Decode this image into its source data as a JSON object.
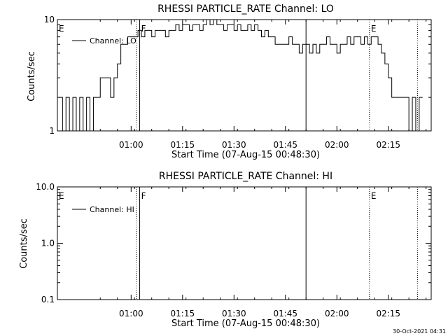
{
  "chart_data": [
    {
      "type": "line",
      "title": "RHESSI PARTICLE_RATE Channel: LO",
      "xlabel": "Start Time (07-Aug-15 00:48:30)",
      "ylabel": "Counts/sec",
      "yscale": "log",
      "ylim": [
        1,
        10
      ],
      "xlim_minutes": [
        -9.5,
        99.5
      ],
      "x_ticks": [
        {
          "m": 12,
          "label": "01:00"
        },
        {
          "m": 27,
          "label": "01:15"
        },
        {
          "m": 42,
          "label": "01:30"
        },
        {
          "m": 57,
          "label": "01:45"
        },
        {
          "m": 72,
          "label": "02:00"
        },
        {
          "m": 87,
          "label": "02:15"
        }
      ],
      "y_ticks": [
        {
          "v": 1,
          "label": "1"
        },
        {
          "v": 10,
          "label": "10"
        }
      ],
      "series": [
        {
          "name": "Channel: LO",
          "x_minutes": [
            -9,
            -8,
            -7,
            -6,
            -5,
            -4,
            -3,
            -2,
            -1,
            0,
            1,
            2,
            3,
            4,
            5,
            6,
            7,
            8,
            9,
            10,
            11,
            12,
            13,
            14,
            15,
            16,
            17,
            18,
            19,
            20,
            21,
            22,
            23,
            24,
            25,
            26,
            27,
            28,
            29,
            30,
            31,
            32,
            33,
            34,
            35,
            36,
            37,
            38,
            39,
            40,
            41,
            42,
            43,
            44,
            45,
            46,
            47,
            48,
            49,
            50,
            51,
            52,
            53,
            54,
            55,
            56,
            57,
            58,
            59,
            60,
            61,
            62,
            63,
            64,
            65,
            66,
            67,
            68,
            69,
            70,
            71,
            72,
            73,
            74,
            75,
            76,
            77,
            78,
            79,
            80,
            81,
            82,
            83,
            84,
            85,
            86,
            87,
            88,
            89,
            90,
            91,
            92,
            93,
            94,
            95,
            96
          ],
          "values": [
            2,
            1,
            2,
            1,
            2,
            1,
            2,
            1,
            2,
            1,
            2,
            2,
            3,
            3,
            3,
            2,
            3,
            4,
            6,
            6,
            7,
            7,
            7,
            8,
            7,
            8,
            8,
            7,
            8,
            8,
            8,
            7,
            8,
            8,
            9,
            8,
            9,
            9,
            8,
            9,
            9,
            8,
            9,
            10,
            9,
            10,
            9,
            9,
            8,
            9,
            9,
            8,
            9,
            8,
            8,
            9,
            8,
            9,
            8,
            7,
            8,
            7,
            7,
            6,
            6,
            6,
            6,
            7,
            6,
            6,
            5,
            6,
            6,
            5,
            6,
            5,
            6,
            6,
            7,
            6,
            6,
            5,
            6,
            6,
            7,
            6,
            7,
            7,
            6,
            7,
            6,
            7,
            7,
            6,
            5,
            4,
            3,
            2,
            2,
            2,
            2,
            2,
            1,
            2,
            1,
            2
          ]
        }
      ],
      "vlines_solid_minutes": [
        14.5,
        63
      ],
      "vlines_dotted_minutes": [
        13.5,
        81.5,
        95.5
      ],
      "markers": [
        {
          "m": -9.5,
          "text": "E"
        },
        {
          "m": 14.5,
          "text": "F"
        },
        {
          "m": 81.5,
          "text": "E"
        }
      ],
      "legend": {
        "label": "Channel: LO",
        "placement": "top-left"
      }
    },
    {
      "type": "line",
      "title": "RHESSI PARTICLE_RATE Channel: HI",
      "xlabel": "Start Time (07-Aug-15 00:48:30)",
      "ylabel": "Counts/sec",
      "yscale": "log",
      "ylim": [
        0.1,
        10
      ],
      "xlim_minutes": [
        -9.5,
        99.5
      ],
      "x_ticks": [
        {
          "m": 12,
          "label": "01:00"
        },
        {
          "m": 27,
          "label": "01:15"
        },
        {
          "m": 42,
          "label": "01:30"
        },
        {
          "m": 57,
          "label": "01:45"
        },
        {
          "m": 72,
          "label": "02:00"
        },
        {
          "m": 87,
          "label": "02:15"
        }
      ],
      "y_ticks": [
        {
          "v": 0.1,
          "label": "0.1"
        },
        {
          "v": 1,
          "label": "1.0"
        },
        {
          "v": 10,
          "label": "10.0"
        }
      ],
      "series": [
        {
          "name": "Channel: HI",
          "x_minutes": [],
          "values": []
        }
      ],
      "vlines_solid_minutes": [
        14.5,
        63
      ],
      "vlines_dotted_minutes": [
        13.5,
        81.5,
        95.5
      ],
      "markers": [
        {
          "m": -9.5,
          "text": "E"
        },
        {
          "m": 14.5,
          "text": "F"
        },
        {
          "m": 81.5,
          "text": "E"
        }
      ],
      "legend": {
        "label": "Channel: HI",
        "placement": "top-left"
      }
    }
  ],
  "footer": {
    "timestamp": "30-Oct-2021 04:31"
  }
}
